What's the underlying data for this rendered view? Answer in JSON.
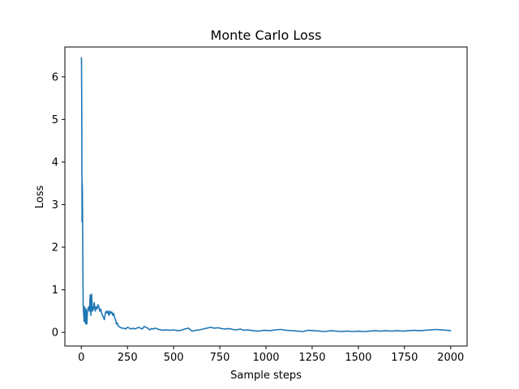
{
  "chart_data": {
    "type": "line",
    "title": "Monte Carlo Loss",
    "xlabel": "Sample steps",
    "ylabel": "Loss",
    "xlim": [
      -89,
      2089
    ],
    "ylim": [
      -0.32,
      6.7
    ],
    "xticks": [
      0,
      250,
      500,
      750,
      1000,
      1250,
      1500,
      1750,
      2000
    ],
    "yticks": [
      0,
      1,
      2,
      3,
      4,
      5,
      6
    ],
    "grid": false,
    "line_color": "#1f77b4",
    "series": [
      {
        "x": [
          0,
          1,
          2,
          3,
          4,
          5,
          6,
          7,
          8,
          9,
          10,
          12,
          14,
          16,
          18,
          20,
          22,
          24,
          26,
          28,
          30,
          33,
          36,
          40,
          44,
          48,
          52,
          56,
          60,
          65,
          70,
          75,
          80,
          85,
          90,
          95,
          100,
          105,
          110,
          115,
          120,
          125,
          130,
          135,
          140,
          145,
          150,
          155,
          160,
          165,
          170,
          175,
          180,
          185,
          190,
          195,
          200,
          210,
          220,
          230,
          240,
          250,
          260,
          270,
          280,
          290,
          300,
          310,
          320,
          330,
          340,
          350,
          360,
          370,
          380,
          390,
          400,
          420,
          440,
          460,
          480,
          500,
          520,
          540,
          560,
          580,
          600,
          620,
          640,
          660,
          680,
          700,
          720,
          740,
          760,
          780,
          800,
          820,
          840,
          860,
          880,
          900,
          930,
          960,
          990,
          1020,
          1050,
          1080,
          1110,
          1140,
          1170,
          1200,
          1230,
          1260,
          1290,
          1320,
          1350,
          1380,
          1410,
          1440,
          1470,
          1500,
          1530,
          1560,
          1590,
          1620,
          1650,
          1680,
          1710,
          1740,
          1770,
          1800,
          1830,
          1860,
          1890,
          1920,
          1950,
          1980,
          2000
        ],
        "y": [
          6.45,
          6.4,
          5.6,
          4.4,
          2.6,
          3.5,
          3.3,
          2.7,
          1.9,
          1.2,
          0.65,
          0.5,
          0.35,
          0.25,
          0.6,
          0.4,
          0.3,
          0.2,
          0.55,
          0.3,
          0.2,
          0.45,
          0.55,
          0.6,
          0.5,
          0.88,
          0.4,
          0.9,
          0.5,
          0.55,
          0.7,
          0.5,
          0.6,
          0.55,
          0.65,
          0.6,
          0.5,
          0.55,
          0.45,
          0.4,
          0.35,
          0.3,
          0.45,
          0.5,
          0.45,
          0.5,
          0.4,
          0.5,
          0.45,
          0.48,
          0.4,
          0.45,
          0.35,
          0.3,
          0.2,
          0.22,
          0.15,
          0.12,
          0.1,
          0.1,
          0.08,
          0.12,
          0.1,
          0.08,
          0.1,
          0.08,
          0.1,
          0.12,
          0.1,
          0.08,
          0.14,
          0.12,
          0.1,
          0.06,
          0.09,
          0.08,
          0.1,
          0.07,
          0.05,
          0.06,
          0.05,
          0.06,
          0.04,
          0.05,
          0.08,
          0.1,
          0.03,
          0.05,
          0.06,
          0.08,
          0.1,
          0.12,
          0.1,
          0.11,
          0.09,
          0.08,
          0.09,
          0.07,
          0.06,
          0.08,
          0.05,
          0.06,
          0.04,
          0.03,
          0.05,
          0.04,
          0.06,
          0.07,
          0.05,
          0.04,
          0.03,
          0.02,
          0.05,
          0.04,
          0.03,
          0.02,
          0.04,
          0.03,
          0.02,
          0.03,
          0.02,
          0.03,
          0.02,
          0.03,
          0.04,
          0.03,
          0.04,
          0.03,
          0.04,
          0.03,
          0.04,
          0.05,
          0.04,
          0.05,
          0.06,
          0.07,
          0.06,
          0.05,
          0.04
        ]
      }
    ]
  }
}
